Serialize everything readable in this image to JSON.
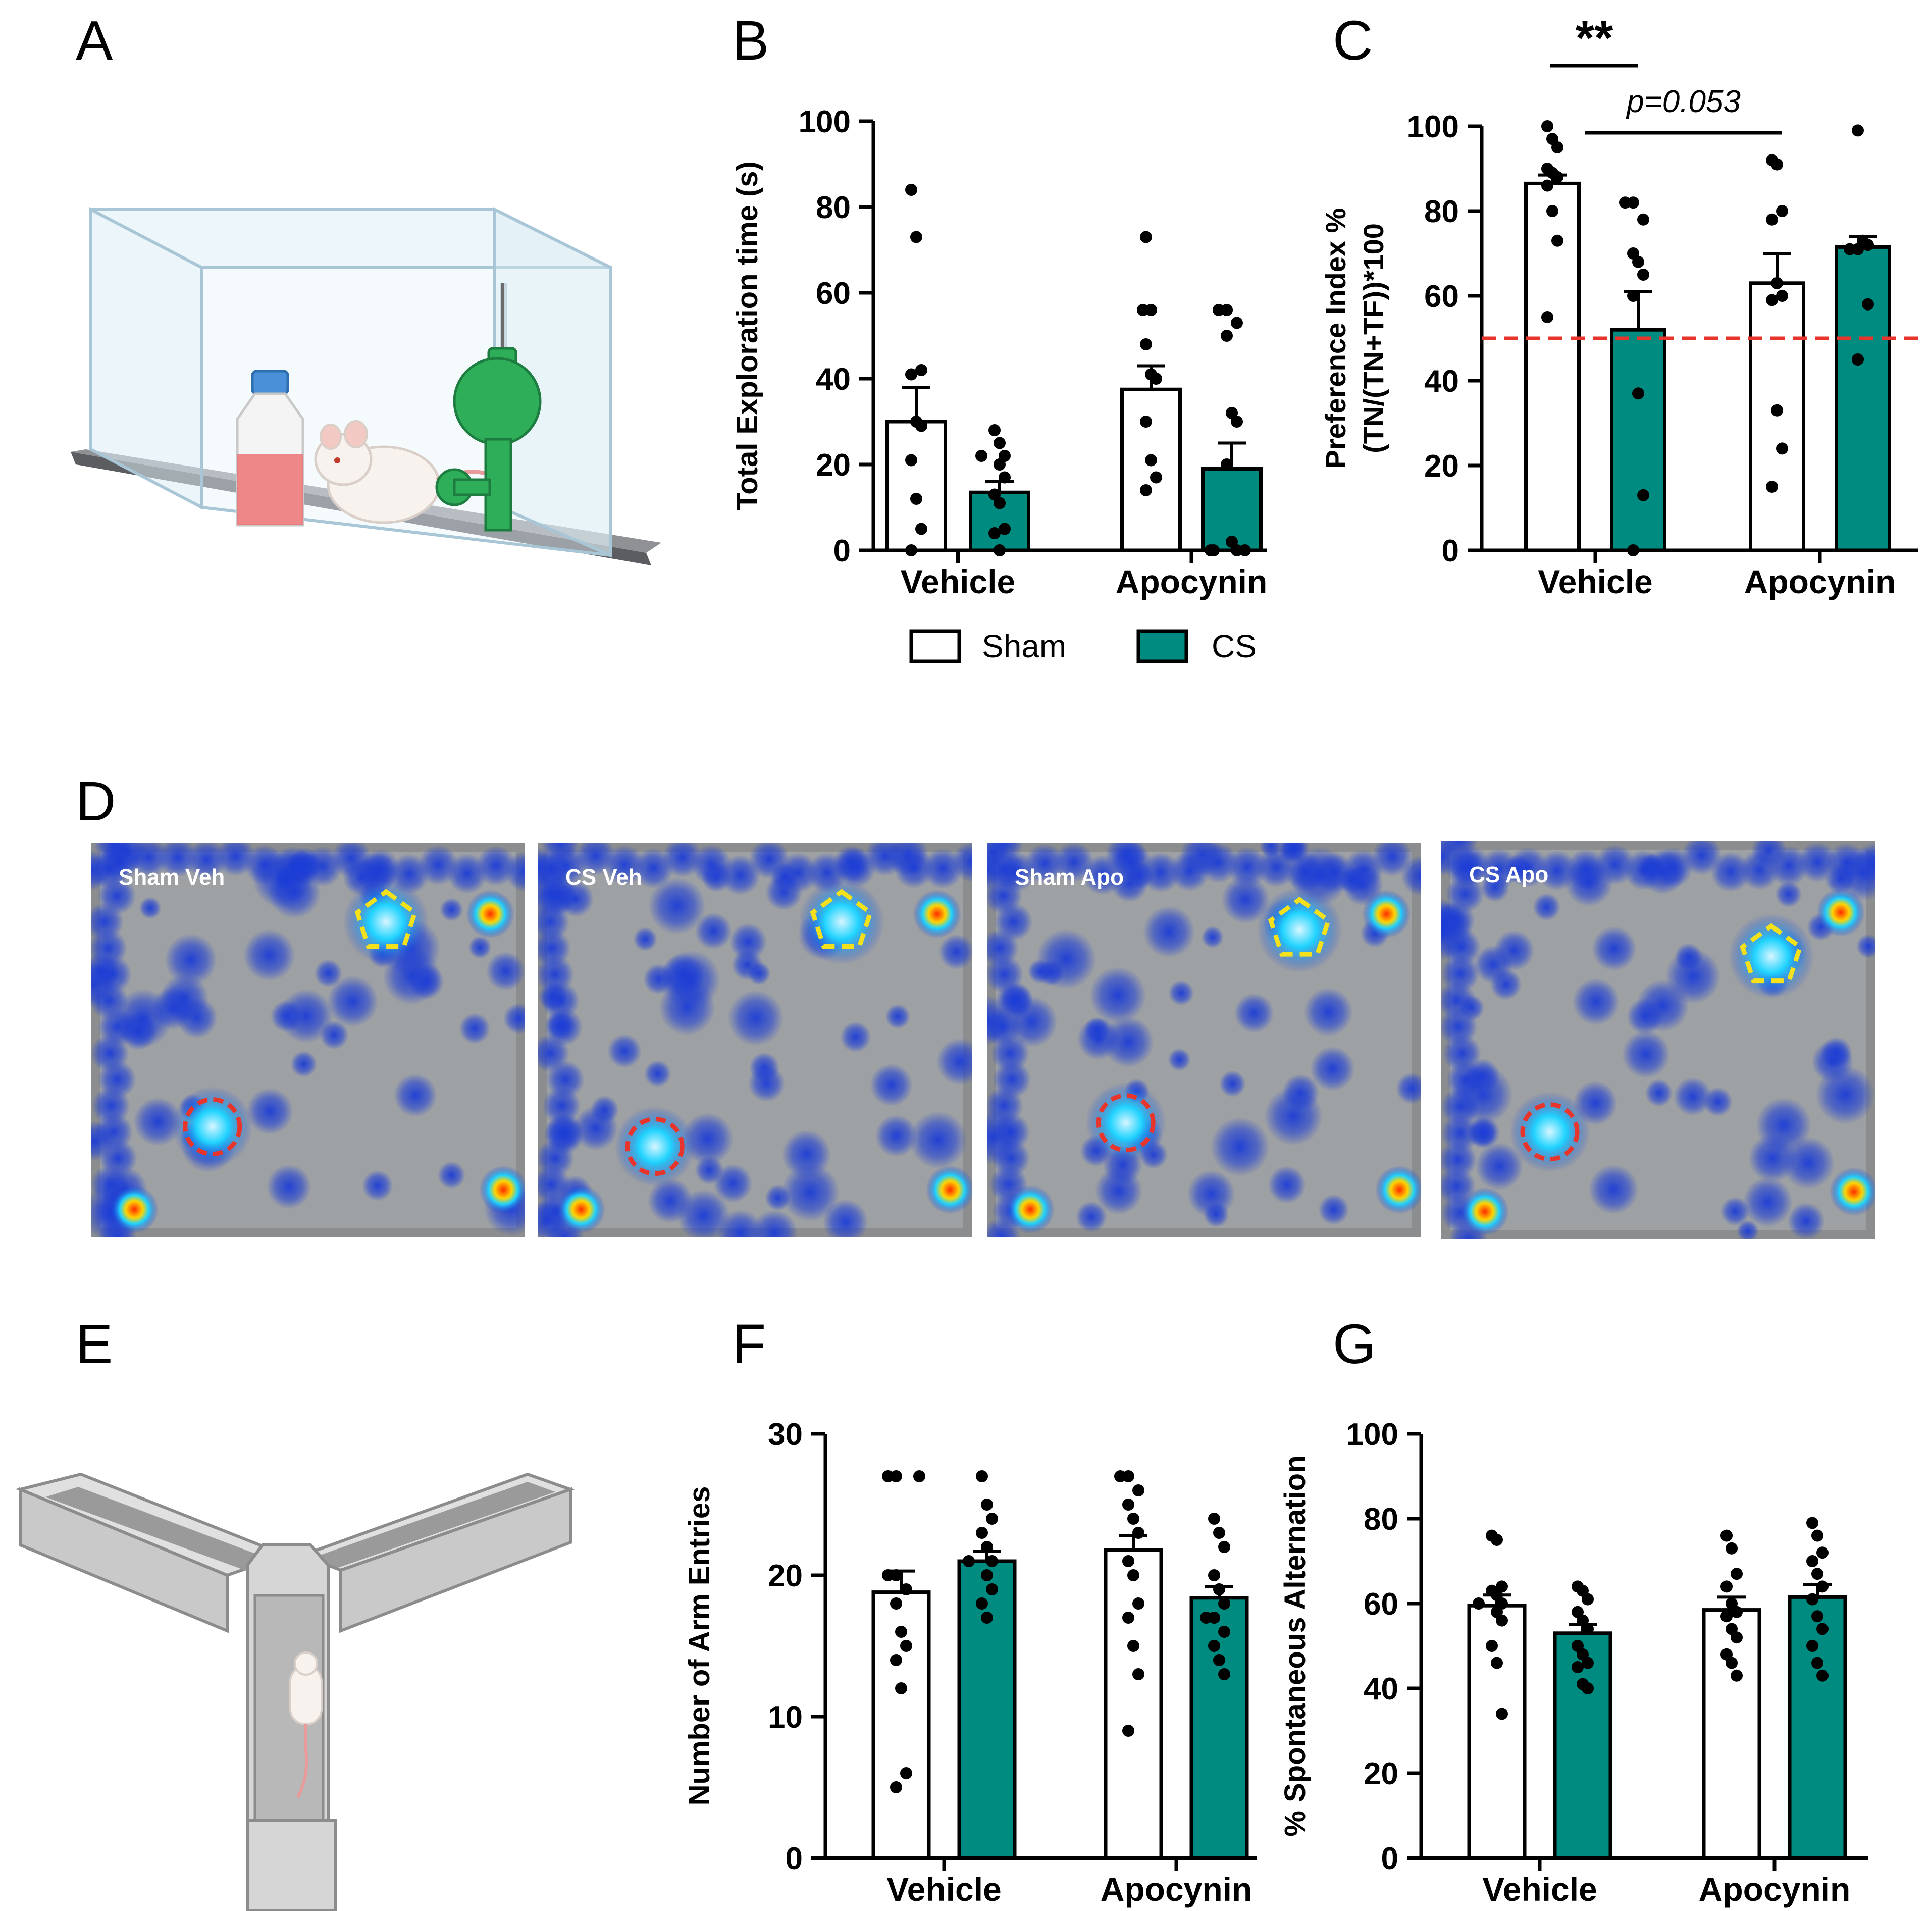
{
  "panels": {
    "A": "A",
    "B": "B",
    "C": "C",
    "D": "D",
    "E": "E",
    "F": "F",
    "G": "G"
  },
  "colors": {
    "sham": "#ffffff",
    "cs": "#008b80",
    "threshold": "#e8352b",
    "stroke": "#000000"
  },
  "legend": {
    "sham": "Sham",
    "cs": "CS"
  },
  "heatmaps": {
    "labels": [
      "Sham Veh",
      "CS Veh",
      "Sham Apo",
      "CS Apo"
    ],
    "colors": {
      "background": "#8b8d8f",
      "low": "#1b3cd6",
      "mid": "#1fd3ff",
      "high": "#ff2a00",
      "familiar_marker": "#e8352b",
      "novel_marker": "#f5e11b"
    }
  },
  "chart_data": [
    {
      "id": "B",
      "type": "bar",
      "categories": [
        "Vehicle",
        "Apocynin"
      ],
      "ylabel": "Total Exploration time (s)",
      "ylim": [
        0,
        100
      ],
      "yticks": [
        0,
        20,
        40,
        60,
        80,
        100
      ],
      "series": [
        {
          "name": "Sham",
          "values": [
            30,
            37.5
          ],
          "sem": [
            8,
            5.5
          ],
          "points": [
            [
              84,
              73,
              42,
              41,
              30,
              29,
              21,
              12,
              5,
              0
            ],
            [
              73,
              56,
              56,
              48,
              41,
              40,
              30,
              21,
              17,
              14
            ]
          ]
        },
        {
          "name": "CS",
          "values": [
            13.5,
            19
          ],
          "sem": [
            2.5,
            6
          ],
          "points": [
            [
              28,
              25,
              22,
              22,
              20,
              17,
              13,
              11,
              5,
              4,
              0
            ],
            [
              56,
              56,
              53,
              50,
              32,
              30,
              20,
              2,
              0,
              0,
              0,
              0
            ]
          ]
        }
      ]
    },
    {
      "id": "C",
      "type": "bar",
      "categories": [
        "Vehicle",
        "Apocynin"
      ],
      "ylabel_lines": [
        "Preference Index %",
        "(TN/(TN+TF))*100"
      ],
      "ylim": [
        0,
        100
      ],
      "yticks": [
        0,
        20,
        40,
        60,
        80,
        100
      ],
      "reference_line": 50,
      "annotations": [
        "**",
        "p=0.053"
      ],
      "series": [
        {
          "name": "Sham",
          "values": [
            86.5,
            63
          ],
          "sem": [
            2,
            7
          ],
          "points": [
            [
              100,
              97,
              95,
              90,
              89,
              88,
              86,
              80,
              73,
              55
            ],
            [
              92,
              91,
              80,
              78,
              63,
              60,
              59,
              33,
              24,
              15
            ]
          ]
        },
        {
          "name": "CS",
          "values": [
            52,
            71.5
          ],
          "sem": [
            9,
            2.5
          ],
          "points": [
            [
              82,
              82,
              78,
              70,
              68,
              65,
              60,
              37,
              13,
              0
            ],
            [
              99,
              73,
              72,
              71,
              71,
              58,
              45
            ]
          ]
        }
      ]
    },
    {
      "id": "F",
      "type": "bar",
      "categories": [
        "Vehicle",
        "Apocynin"
      ],
      "ylabel": "Number of Arm Entries",
      "ylim": [
        0,
        30
      ],
      "yticks": [
        0,
        10,
        20,
        30
      ],
      "series": [
        {
          "name": "Sham",
          "values": [
            18.8,
            21.8
          ],
          "sem": [
            1.5,
            1
          ],
          "points": [
            [
              27,
              27,
              27,
              20,
              20,
              19,
              18,
              16,
              15,
              14,
              12,
              6,
              5
            ],
            [
              27,
              27,
              26,
              25,
              24,
              23,
              21,
              20,
              18,
              17,
              15,
              13,
              9
            ]
          ]
        },
        {
          "name": "CS",
          "values": [
            21,
            18.4
          ],
          "sem": [
            0.7,
            0.8
          ],
          "points": [
            [
              27,
              25,
              24,
              23,
              22,
              21,
              21,
              20,
              19,
              18,
              17
            ],
            [
              24,
              23,
              22,
              20,
              19,
              18,
              17,
              17,
              16,
              15,
              14,
              13
            ]
          ]
        }
      ]
    },
    {
      "id": "G",
      "type": "bar",
      "categories": [
        "Vehicle",
        "Apocynin"
      ],
      "ylabel": "% Spontaneous Alternation",
      "ylim": [
        0,
        100
      ],
      "yticks": [
        0,
        20,
        40,
        60,
        80,
        100
      ],
      "series": [
        {
          "name": "Sham",
          "values": [
            59.5,
            58.5
          ],
          "sem": [
            2.5,
            3
          ],
          "points": [
            [
              76,
              75,
              64,
              63,
              62,
              60,
              60,
              58,
              56,
              50,
              46,
              34
            ],
            [
              76,
              73,
              67,
              64,
              60,
              58,
              57,
              54,
              52,
              48,
              46,
              43
            ]
          ]
        },
        {
          "name": "CS",
          "values": [
            53,
            61.5
          ],
          "sem": [
            2,
            3
          ],
          "points": [
            [
              64,
              63,
              61,
              58,
              56,
              54,
              50,
              48,
              46,
              45,
              41,
              40
            ],
            [
              79,
              76,
              72,
              70,
              67,
              64,
              61,
              57,
              54,
              50,
              46,
              43
            ]
          ]
        }
      ]
    }
  ]
}
